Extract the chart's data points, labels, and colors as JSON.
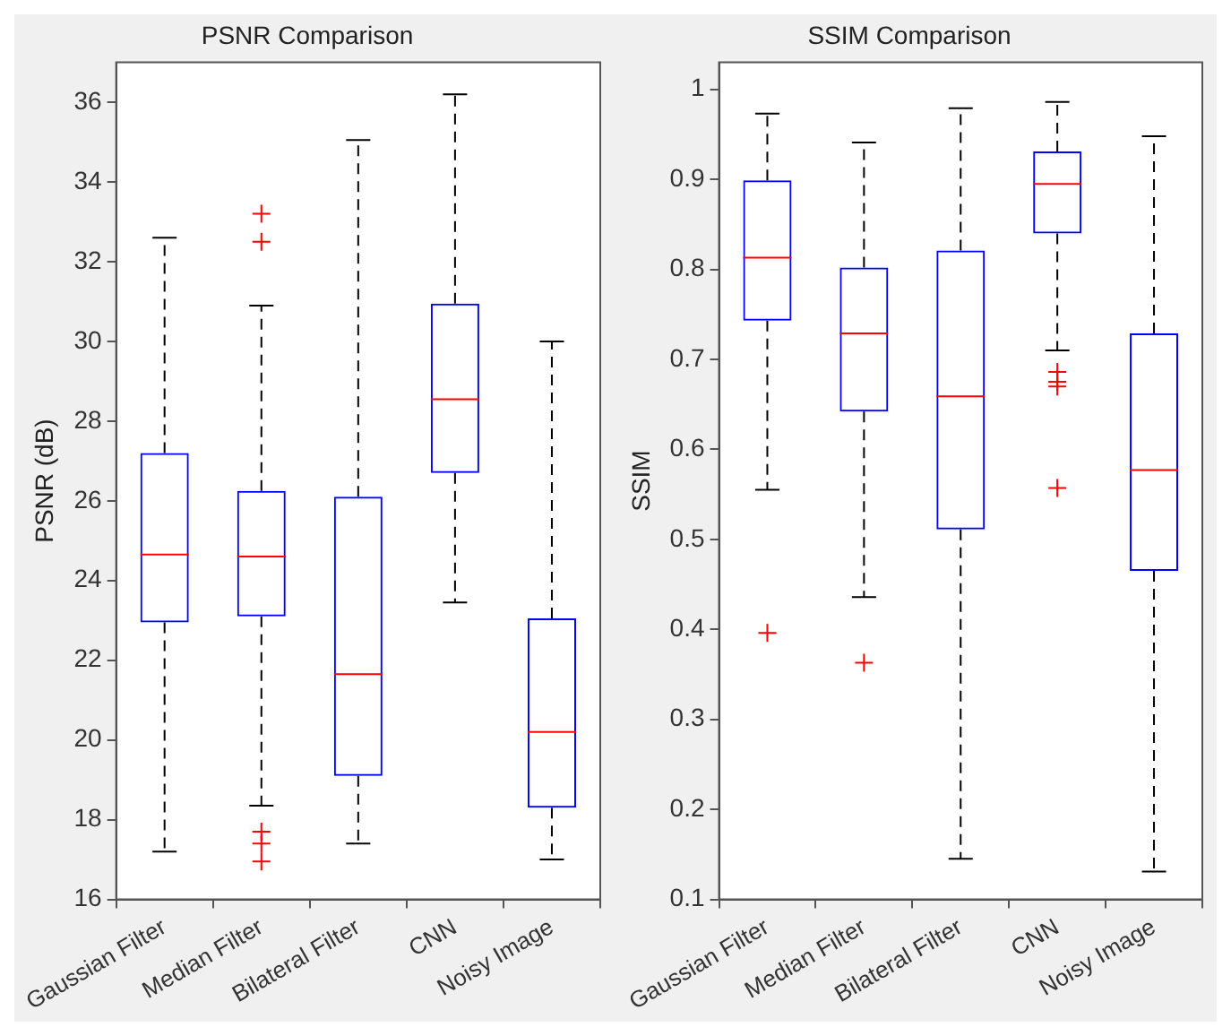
{
  "chart_data": [
    {
      "type": "box",
      "title": "PSNR Comparison",
      "ylabel": "PSNR (dB)",
      "categories": [
        "Gaussian Filter",
        "Median Filter",
        "Bilateral Filter",
        "CNN",
        "Noisy Image"
      ],
      "color": "#0000ff",
      "ylim": [
        16,
        37
      ],
      "yticks": [
        16,
        18,
        20,
        22,
        24,
        26,
        28,
        30,
        32,
        34,
        36
      ],
      "boxes": [
        {
          "low": 17.2,
          "q1": 22.95,
          "median": 24.65,
          "q3": 27.2,
          "high": 32.6
        },
        {
          "low": 18.35,
          "q1": 23.1,
          "median": 24.6,
          "q3": 26.25,
          "high": 30.9,
          "outliers": [
            33.2,
            32.5,
            17.7,
            17.4,
            16.95
          ]
        },
        {
          "low": 17.4,
          "q1": 19.1,
          "median": 21.65,
          "q3": 26.1,
          "high": 35.05
        },
        {
          "low": 23.45,
          "q1": 26.7,
          "median": 28.55,
          "q3": 30.95,
          "high": 36.2
        },
        {
          "low": 17.0,
          "q1": 18.3,
          "median": 20.2,
          "q3": 23.05,
          "high": 30.0
        }
      ]
    },
    {
      "type": "box",
      "title": "SSIM Comparison",
      "ylabel": "SSIM",
      "categories": [
        "Gaussian Filter",
        "Median Filter",
        "Bilateral Filter",
        "CNN",
        "Noisy Image"
      ],
      "color": "#0000ff",
      "ylim": [
        0.1,
        1.03
      ],
      "yticks": [
        0.1,
        0.2,
        0.3,
        0.4,
        0.5,
        0.6,
        0.7,
        0.8,
        0.9,
        1
      ],
      "boxes": [
        {
          "low": 0.555,
          "q1": 0.743,
          "median": 0.813,
          "q3": 0.899,
          "high": 0.973,
          "outliers": [
            0.396
          ]
        },
        {
          "low": 0.436,
          "q1": 0.642,
          "median": 0.729,
          "q3": 0.802,
          "high": 0.941,
          "outliers": [
            0.363
          ]
        },
        {
          "low": 0.145,
          "q1": 0.511,
          "median": 0.659,
          "q3": 0.821,
          "high": 0.979
        },
        {
          "low": 0.71,
          "q1": 0.84,
          "median": 0.895,
          "q3": 0.931,
          "high": 0.986,
          "outliers": [
            0.686,
            0.675,
            0.67,
            0.557
          ]
        },
        {
          "low": 0.131,
          "q1": 0.465,
          "median": 0.577,
          "q3": 0.729,
          "high": 0.948
        }
      ]
    }
  ]
}
